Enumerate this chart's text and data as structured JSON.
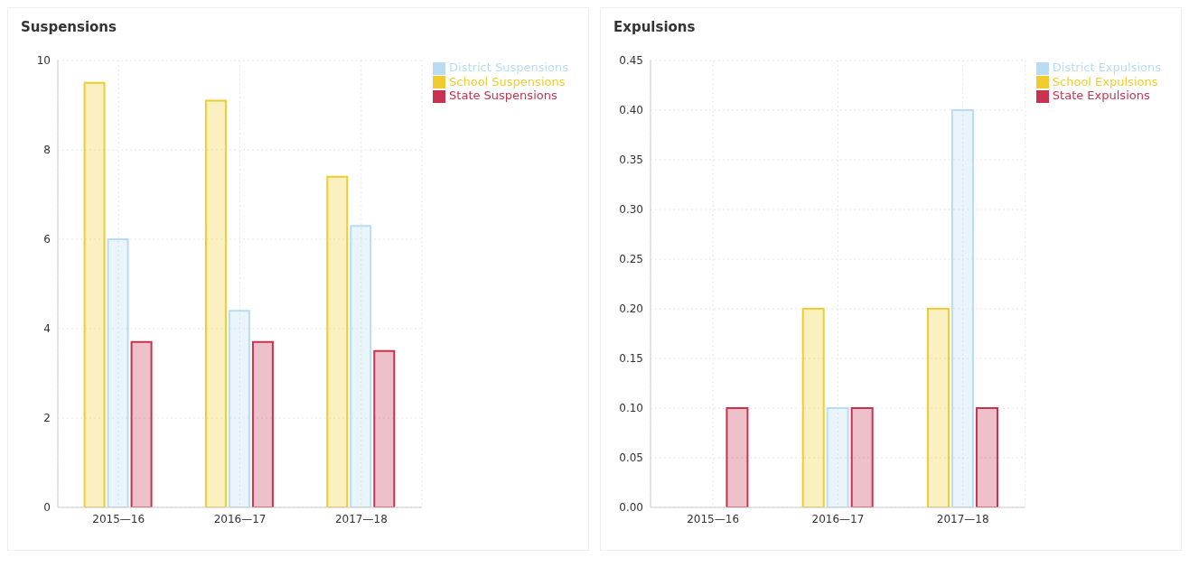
{
  "chart_data": [
    {
      "type": "bar",
      "title": "Suspensions",
      "categories": [
        "2015—16",
        "2016—17",
        "2017—18"
      ],
      "series": [
        {
          "name": "School Suspensions",
          "color": "#f0cc30",
          "values": [
            9.5,
            9.1,
            7.4
          ]
        },
        {
          "name": "District Suspensions",
          "color": "#b9dcf2",
          "values": [
            6.0,
            4.4,
            6.3
          ]
        },
        {
          "name": "State Suspensions",
          "color": "#c8324f",
          "values": [
            3.7,
            3.7,
            3.5
          ]
        }
      ],
      "ylim": [
        0,
        10
      ],
      "yticks": [
        0,
        2,
        4,
        6,
        8,
        10
      ],
      "grid": true,
      "legend": "top right"
    },
    {
      "type": "bar",
      "title": "Expulsions",
      "categories": [
        "2015—16",
        "2016—17",
        "2017—18"
      ],
      "series": [
        {
          "name": "School Expulsions",
          "color": "#f0cc30",
          "values": [
            0,
            0.2,
            0.2
          ]
        },
        {
          "name": "District Expulsions",
          "color": "#b9dcf2",
          "values": [
            0,
            0.1,
            0.4
          ]
        },
        {
          "name": "State Expulsions",
          "color": "#c8324f",
          "values": [
            0.1,
            0.1,
            0.1
          ]
        }
      ],
      "ylim": [
        0,
        0.45
      ],
      "yticks": [
        {
          "value": 0,
          "label": "0.00"
        },
        {
          "value": 0.05,
          "label": "0.05"
        },
        {
          "value": 0.1,
          "label": "0.10"
        },
        {
          "value": 0.15,
          "label": "0.15"
        },
        {
          "value": 0.2,
          "label": "0.20"
        },
        {
          "value": 0.25,
          "label": "0.25"
        },
        {
          "value": 0.3,
          "label": "0.30"
        },
        {
          "value": 0.35,
          "label": "0.35"
        },
        {
          "value": 0.4,
          "label": "0.40"
        },
        {
          "value": 0.45,
          "label": "0.45"
        }
      ],
      "grid": true,
      "legend": "top right"
    }
  ]
}
